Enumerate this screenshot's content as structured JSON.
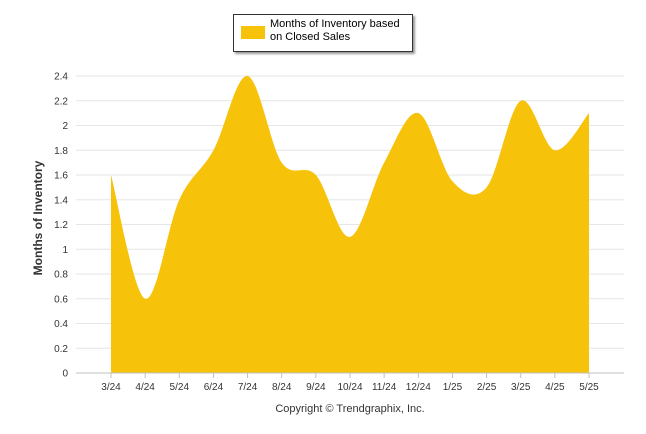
{
  "chart_data": {
    "type": "area",
    "x": [
      "3/24",
      "4/24",
      "5/24",
      "6/24",
      "7/24",
      "8/24",
      "9/24",
      "10/24",
      "11/24",
      "12/24",
      "1/25",
      "2/25",
      "3/25",
      "4/25",
      "5/25"
    ],
    "series": [
      {
        "name": "Months of Inventory based on Closed Sales",
        "values": [
          1.6,
          0.6,
          1.4,
          1.8,
          2.4,
          1.7,
          1.6,
          1.1,
          1.7,
          2.1,
          1.55,
          1.5,
          2.2,
          1.8,
          2.1
        ]
      }
    ],
    "ylabel": "Months of Inventory",
    "xlabel": "",
    "ylim": [
      0,
      2.4
    ],
    "yticks": [
      "0",
      "0.2",
      "0.4",
      "0.6",
      "0.8",
      "1",
      "1.2",
      "1.4",
      "1.6",
      "1.8",
      "2",
      "2.2",
      "2.4"
    ],
    "legend_position": "top-center",
    "grid": true,
    "color": "#F7C20A",
    "footer": "Copyright © Trendgraphix, Inc."
  }
}
